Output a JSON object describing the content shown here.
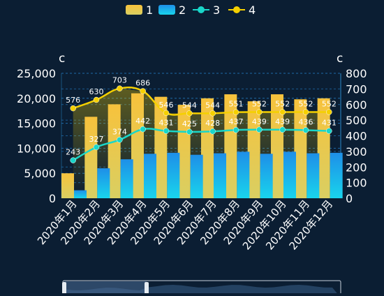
{
  "chart_data": {
    "type": "bar",
    "categories": [
      "2020年1月",
      "2020年2月",
      "2020年3月",
      "2020年4月",
      "2020年5月",
      "2020年6月",
      "2020年7月",
      "2020年8月",
      "2020年9月",
      "2020年10月",
      "2020年11月",
      "2020年12月"
    ],
    "series": [
      {
        "name": "1",
        "type": "bar",
        "axis": "left",
        "values": [
          5000,
          16300,
          18800,
          21000,
          20300,
          18700,
          20000,
          20800,
          19400,
          20800,
          19800,
          20000
        ]
      },
      {
        "name": "2",
        "type": "bar",
        "axis": "left",
        "values": [
          1600,
          6000,
          7800,
          8900,
          9100,
          8700,
          9000,
          9300,
          8900,
          9300,
          9000,
          9100
        ]
      },
      {
        "name": "3",
        "type": "line",
        "axis": "right",
        "values": [
          243,
          327,
          374,
          442,
          431,
          425,
          428,
          437,
          439,
          439,
          436,
          431
        ],
        "labels_shown": true
      },
      {
        "name": "4",
        "type": "line",
        "axis": "right",
        "values": [
          576,
          630,
          703,
          686,
          546,
          544,
          544,
          551,
          552,
          552,
          552,
          552
        ],
        "labels_shown": true
      }
    ],
    "left_axis": {
      "label": "c",
      "min": 0,
      "max": 25000,
      "ticks": [
        "0",
        "5,000",
        "10,000",
        "15,000",
        "20,000",
        "25,000"
      ]
    },
    "right_axis": {
      "label": "c",
      "min": 0,
      "max": 800,
      "ticks": [
        "0",
        "100",
        "200",
        "300",
        "400",
        "500",
        "600",
        "700",
        "800"
      ]
    },
    "legend": {
      "position": "top-center",
      "items": [
        "1",
        "2",
        "3",
        "4"
      ]
    },
    "grid": true,
    "colors": {
      "background": "#0b1e33",
      "bar1_top": "#f7c23c",
      "bar1_bottom": "#d8d061",
      "bar2_top": "#1e8fe8",
      "bar2_bottom": "#1ad3ec",
      "line3": "#19d6c9",
      "line4": "#f5d000",
      "grid": "#1e6aa8",
      "axis_text": "#ffffff"
    },
    "has_zoom_slider": true
  }
}
